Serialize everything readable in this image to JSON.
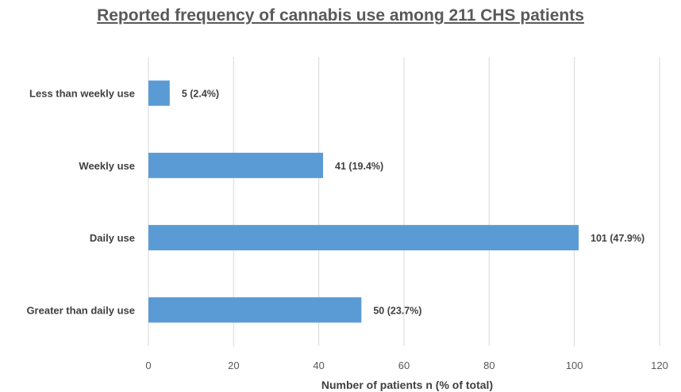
{
  "chart_data": {
    "type": "bar",
    "orientation": "horizontal",
    "title": "Reported frequency of cannabis use among 211 CHS patients",
    "xlabel": "Number of patients n (% of total)",
    "ylabel": "",
    "categories": [
      "Less than weekly use",
      "Weekly use",
      "Daily use",
      "Greater than daily use"
    ],
    "values": [
      5,
      41,
      101,
      50
    ],
    "data_labels": [
      "5 (2.4%)",
      "41 (19.4%)",
      "101 (47.9%)",
      "50 (23.7%)"
    ],
    "xlim": [
      0,
      120
    ],
    "x_ticks": [
      0,
      20,
      40,
      60,
      80,
      100,
      120
    ],
    "x_tick_labels": [
      "0",
      "20",
      "40",
      "60",
      "80",
      "100",
      "120"
    ],
    "grid": true,
    "bar_color": "#5b9bd5"
  }
}
